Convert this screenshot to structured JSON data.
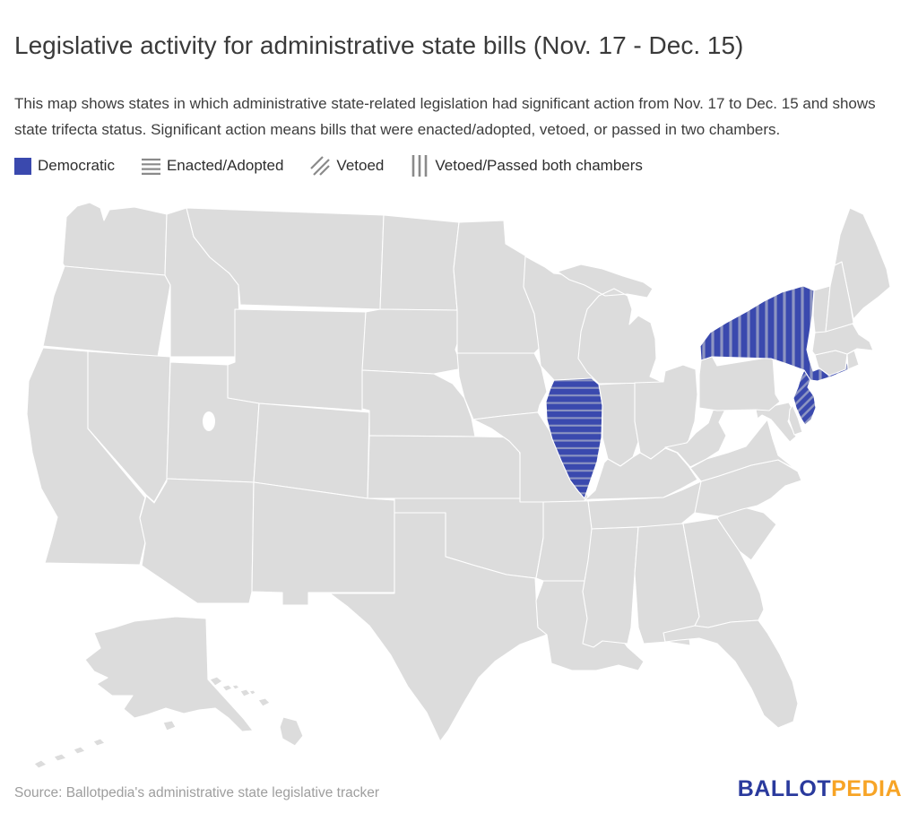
{
  "title": "Legislative activity for administrative state bills (Nov. 17 - Dec. 15)",
  "description": "This map shows states in which administrative state-related legislation had significant action from Nov. 17 to Dec. 15 and shows state trifecta status. Significant action means bills that were enacted/adopted, vetoed, or passed in two chambers.",
  "legend": {
    "items": [
      {
        "label": "Democratic",
        "icon": "democratic-swatch"
      },
      {
        "label": "Enacted/Adopted",
        "icon": "horizontal-lines"
      },
      {
        "label": "Vetoed",
        "icon": "diagonal-lines"
      },
      {
        "label": "Vetoed/Passed both chambers",
        "icon": "vertical-lines"
      }
    ],
    "icon_line_color": "#8a8a8a"
  },
  "map": {
    "colors": {
      "democratic": "#3a49ae",
      "stripe": "#8d95c2",
      "state_default": "#dcdcdc",
      "border": "#ffffff",
      "water": "#ffffff"
    },
    "highlighted_states": [
      {
        "state": "Illinois",
        "trifecta": "Democratic",
        "pattern": "horizontal",
        "action": "Enacted/Adopted"
      },
      {
        "state": "New York",
        "trifecta": "Democratic",
        "pattern": "vertical",
        "action": "Vetoed/Passed both chambers"
      },
      {
        "state": "New Jersey",
        "trifecta": "Democratic",
        "pattern": "diagonal",
        "action": "Vetoed"
      }
    ]
  },
  "footer": {
    "source": "Source: Ballotpedia's administrative state legislative tracker",
    "logo": {
      "ballot": "BALLOT",
      "pedia": "PEDIA",
      "ballot_color": "#2a3a9d",
      "pedia_color": "#f7a426"
    }
  }
}
